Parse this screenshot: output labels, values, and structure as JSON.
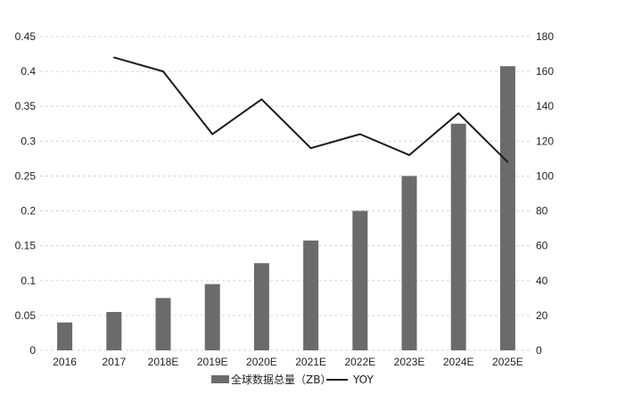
{
  "chart_data": {
    "type": "bar",
    "categories": [
      "2016",
      "2017",
      "2018E",
      "2019E",
      "2020E",
      "2021E",
      "2022E",
      "2023E",
      "2024E",
      "2025E"
    ],
    "series": [
      {
        "name": "全球数据总量（ZB）",
        "type": "bar",
        "axis": "right",
        "values": [
          16,
          22,
          30,
          38,
          50,
          63,
          80,
          100,
          130,
          163
        ]
      },
      {
        "name": "YOY",
        "type": "line",
        "axis": "left",
        "values": [
          null,
          0.42,
          0.4,
          0.31,
          0.36,
          0.29,
          0.31,
          0.28,
          0.34,
          0.27
        ]
      }
    ],
    "y_left": {
      "range": [
        0,
        0.45
      ],
      "ticks": [
        "0",
        "0.05",
        "0.1",
        "0.15",
        "0.2",
        "0.25",
        "0.3",
        "0.35",
        "0.4",
        "0.45"
      ]
    },
    "y_right": {
      "range": [
        0,
        180
      ],
      "ticks": [
        "0",
        "20",
        "40",
        "60",
        "80",
        "100",
        "120",
        "140",
        "160",
        "180"
      ]
    },
    "grid": true,
    "legend_position": "bottom-center",
    "colors": {
      "bar": "#6b6b6b",
      "line": "#1a1a1a",
      "grid": "#d6d6d6"
    }
  }
}
